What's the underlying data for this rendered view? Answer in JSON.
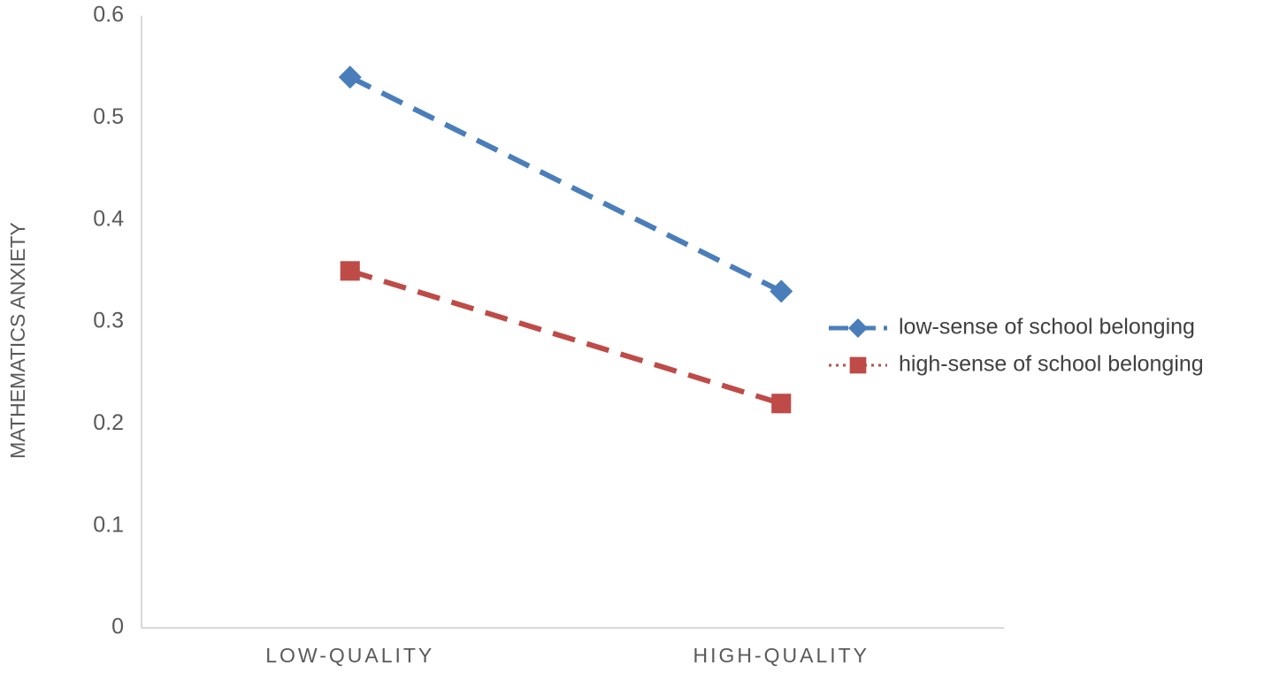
{
  "chart_data": {
    "type": "line",
    "y_label": "MATHEMATICS ANXIETY",
    "categories": [
      "LOW-QUALITY",
      "HIGH-QUALITY"
    ],
    "series": [
      {
        "name": "low-sense of school belonging",
        "color": "#4a7ebb",
        "marker": "diamond",
        "values": [
          0.54,
          0.33
        ]
      },
      {
        "name": "high-sense of school belonging",
        "color": "#be4b48",
        "marker": "square",
        "values": [
          0.35,
          0.22
        ]
      }
    ],
    "ylim": [
      0,
      0.6
    ],
    "yticks": [
      0,
      0.1,
      0.2,
      0.3,
      0.4,
      0.5,
      0.6
    ],
    "grid": false,
    "legend": "right"
  }
}
